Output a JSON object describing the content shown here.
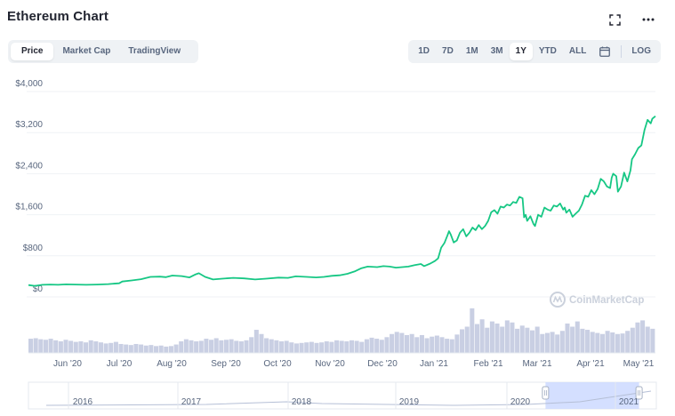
{
  "header": {
    "title": "Ethereum Chart"
  },
  "icons": {
    "fullscreen": "fullscreen-icon",
    "more": "more-icon",
    "calendar": "calendar-icon"
  },
  "tabs": [
    {
      "label": "Price",
      "active": true
    },
    {
      "label": "Market Cap",
      "active": false
    },
    {
      "label": "TradingView",
      "active": false
    }
  ],
  "ranges": [
    {
      "label": "1D",
      "active": false
    },
    {
      "label": "7D",
      "active": false
    },
    {
      "label": "1M",
      "active": false
    },
    {
      "label": "3M",
      "active": false
    },
    {
      "label": "1Y",
      "active": true
    },
    {
      "label": "YTD",
      "active": false
    },
    {
      "label": "ALL",
      "active": false
    }
  ],
  "log_label": "LOG",
  "watermark": "CoinMarketCap",
  "colors": {
    "line": "#16c784",
    "volume": "#c9cfe3",
    "grid": "#eff2f5",
    "axis_text": "#58667e",
    "navigator_highlight": "#cfdcff"
  },
  "chart_data": {
    "type": "line",
    "y_axis": {
      "ticks": [
        "$0",
        "$800",
        "$1,600",
        "$2,400",
        "$3,200",
        "$4,000"
      ],
      "tick_values": [
        0,
        800,
        1600,
        2400,
        3200,
        4000
      ],
      "ylim": [
        0,
        4000
      ]
    },
    "x_labels": [
      "Jun '20",
      "Jul '20",
      "Aug '20",
      "Sep '20",
      "Oct '20",
      "Nov '20",
      "Dec '20",
      "Jan '21",
      "Feb '21",
      "Mar '21",
      "Apr '21",
      "May '21"
    ],
    "price": [
      [
        0,
        230
      ],
      [
        4,
        215
      ],
      [
        9,
        235
      ],
      [
        14,
        240
      ],
      [
        19,
        235
      ],
      [
        24,
        245
      ],
      [
        30,
        240
      ],
      [
        37,
        235
      ],
      [
        44,
        240
      ],
      [
        51,
        250
      ],
      [
        58,
        265
      ],
      [
        60,
        300
      ],
      [
        66,
        320
      ],
      [
        72,
        345
      ],
      [
        78,
        390
      ],
      [
        84,
        395
      ],
      [
        88,
        385
      ],
      [
        92,
        415
      ],
      [
        98,
        405
      ],
      [
        103,
        380
      ],
      [
        107,
        440
      ],
      [
        109,
        460
      ],
      [
        113,
        390
      ],
      [
        118,
        340
      ],
      [
        124,
        355
      ],
      [
        131,
        370
      ],
      [
        138,
        360
      ],
      [
        145,
        340
      ],
      [
        152,
        355
      ],
      [
        160,
        375
      ],
      [
        166,
        370
      ],
      [
        171,
        400
      ],
      [
        178,
        390
      ],
      [
        184,
        380
      ],
      [
        189,
        390
      ],
      [
        194,
        410
      ],
      [
        199,
        420
      ],
      [
        204,
        450
      ],
      [
        209,
        500
      ],
      [
        213,
        560
      ],
      [
        217,
        590
      ],
      [
        223,
        580
      ],
      [
        227,
        600
      ],
      [
        231,
        590
      ],
      [
        235,
        570
      ],
      [
        239,
        580
      ],
      [
        243,
        590
      ],
      [
        247,
        620
      ],
      [
        251,
        640
      ],
      [
        253,
        600
      ],
      [
        257,
        650
      ],
      [
        260,
        700
      ],
      [
        262,
        750
      ],
      [
        264,
        960
      ],
      [
        266,
        1050
      ],
      [
        268,
        1200
      ],
      [
        269,
        1280
      ],
      [
        270,
        1220
      ],
      [
        272,
        1060
      ],
      [
        274,
        1100
      ],
      [
        276,
        1250
      ],
      [
        278,
        1320
      ],
      [
        280,
        1180
      ],
      [
        282,
        1250
      ],
      [
        284,
        1350
      ],
      [
        286,
        1300
      ],
      [
        288,
        1400
      ],
      [
        290,
        1320
      ],
      [
        292,
        1380
      ],
      [
        294,
        1480
      ],
      [
        296,
        1650
      ],
      [
        298,
        1690
      ],
      [
        300,
        1620
      ],
      [
        302,
        1760
      ],
      [
        304,
        1740
      ],
      [
        306,
        1800
      ],
      [
        308,
        1780
      ],
      [
        310,
        1850
      ],
      [
        312,
        1830
      ],
      [
        314,
        1950
      ],
      [
        316,
        1920
      ],
      [
        317,
        1550
      ],
      [
        318,
        1600
      ],
      [
        319,
        1480
      ],
      [
        321,
        1570
      ],
      [
        323,
        1420
      ],
      [
        324,
        1380
      ],
      [
        326,
        1600
      ],
      [
        328,
        1560
      ],
      [
        330,
        1740
      ],
      [
        332,
        1700
      ],
      [
        334,
        1680
      ],
      [
        336,
        1780
      ],
      [
        338,
        1760
      ],
      [
        340,
        1820
      ],
      [
        342,
        1700
      ],
      [
        343,
        1740
      ],
      [
        344,
        1640
      ],
      [
        346,
        1700
      ],
      [
        348,
        1560
      ],
      [
        350,
        1620
      ],
      [
        352,
        1680
      ],
      [
        354,
        1800
      ],
      [
        356,
        1970
      ],
      [
        358,
        1950
      ],
      [
        360,
        2080
      ],
      [
        362,
        2000
      ],
      [
        364,
        2100
      ],
      [
        366,
        2300
      ],
      [
        368,
        2250
      ],
      [
        370,
        2150
      ],
      [
        372,
        2120
      ],
      [
        373,
        2320
      ],
      [
        374,
        2400
      ],
      [
        376,
        2350
      ],
      [
        377,
        2050
      ],
      [
        379,
        2150
      ],
      [
        381,
        2420
      ],
      [
        383,
        2250
      ],
      [
        385,
        2460
      ],
      [
        386,
        2680
      ],
      [
        388,
        2780
      ],
      [
        390,
        2900
      ],
      [
        392,
        2950
      ],
      [
        394,
        3250
      ],
      [
        396,
        3450
      ],
      [
        398,
        3380
      ],
      [
        399,
        3470
      ],
      [
        401,
        3520
      ]
    ],
    "price_x_range": [
      0,
      401
    ],
    "volume_ylim": [
      0,
      1
    ],
    "volume": [
      0.27,
      0.28,
      0.26,
      0.25,
      0.27,
      0.24,
      0.22,
      0.25,
      0.23,
      0.21,
      0.22,
      0.2,
      0.24,
      0.22,
      0.2,
      0.18,
      0.19,
      0.21,
      0.17,
      0.16,
      0.15,
      0.17,
      0.16,
      0.14,
      0.15,
      0.13,
      0.14,
      0.12,
      0.13,
      0.16,
      0.22,
      0.26,
      0.24,
      0.22,
      0.23,
      0.27,
      0.25,
      0.28,
      0.24,
      0.25,
      0.26,
      0.23,
      0.22,
      0.24,
      0.3,
      0.44,
      0.36,
      0.28,
      0.26,
      0.24,
      0.22,
      0.23,
      0.2,
      0.18,
      0.19,
      0.2,
      0.21,
      0.19,
      0.2,
      0.22,
      0.21,
      0.24,
      0.23,
      0.22,
      0.24,
      0.23,
      0.21,
      0.26,
      0.29,
      0.27,
      0.25,
      0.3,
      0.36,
      0.4,
      0.38,
      0.34,
      0.36,
      0.3,
      0.34,
      0.28,
      0.31,
      0.33,
      0.3,
      0.27,
      0.26,
      0.35,
      0.45,
      0.5,
      0.85,
      0.55,
      0.64,
      0.48,
      0.6,
      0.56,
      0.5,
      0.62,
      0.58,
      0.46,
      0.52,
      0.48,
      0.43,
      0.5,
      0.36,
      0.38,
      0.4,
      0.35,
      0.42,
      0.56,
      0.5,
      0.6,
      0.46,
      0.44,
      0.4,
      0.38,
      0.36,
      0.42,
      0.39,
      0.36,
      0.37,
      0.42,
      0.48,
      0.58,
      0.62,
      0.5,
      0.46
    ],
    "navigator": {
      "years": [
        "2016",
        "2017",
        "2018",
        "2019",
        "2020",
        "2021"
      ],
      "selection": [
        0.8235,
        0.9725
      ]
    }
  }
}
